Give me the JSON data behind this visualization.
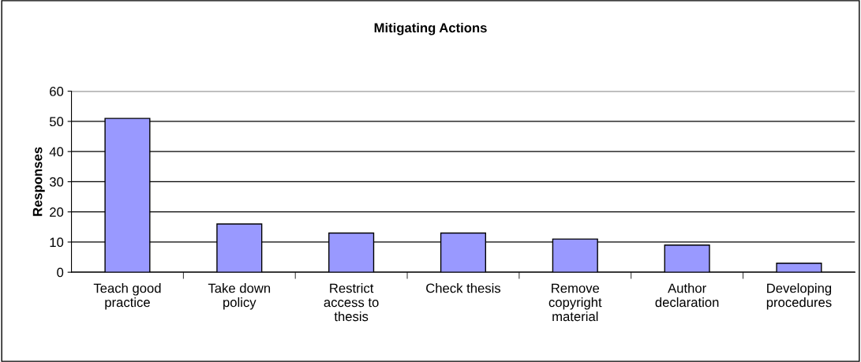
{
  "chart_data": {
    "type": "bar",
    "title": "Mitigating Actions",
    "ylabel": "Responses",
    "categories": [
      "Teach good\npractice",
      "Take down\npolicy",
      "Restrict\naccess to\nthesis",
      "Check thesis",
      "Remove\ncopyright\nmaterial",
      "Author\ndeclaration",
      "Developing\nprocedures"
    ],
    "values": [
      51,
      16,
      13,
      13,
      11,
      9,
      3
    ],
    "color": "#9999ff",
    "ylim": [
      0,
      60
    ],
    "yticks": [
      0,
      10,
      20,
      30,
      40,
      50,
      60
    ],
    "grid": "y",
    "legend": false
  }
}
